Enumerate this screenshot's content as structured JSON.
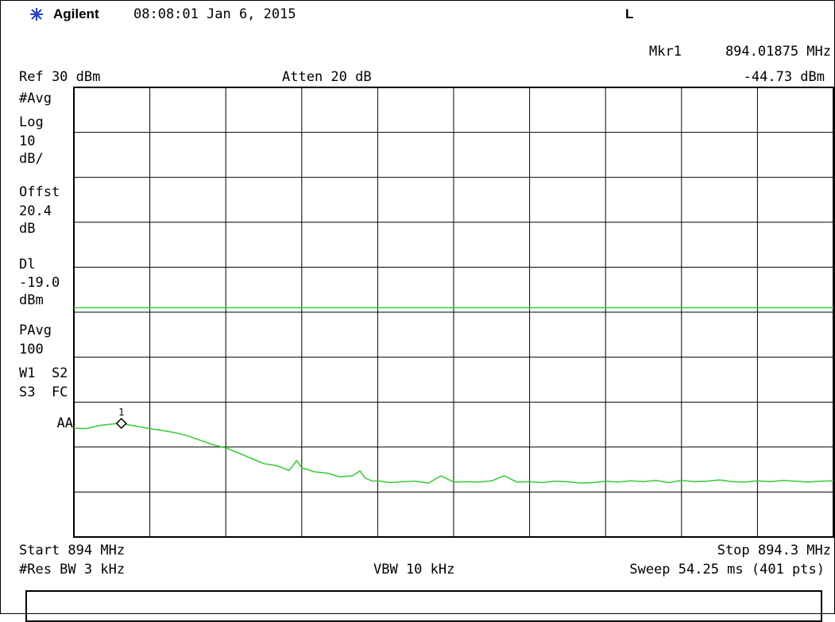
{
  "header": {
    "brand": "Agilent",
    "time": "08:08:01",
    "date": "Jan 6, 2015",
    "mode_flag": "L"
  },
  "marker": {
    "label": "Mkr1",
    "freq": "894.01875 MHz",
    "level": "-44.73 dBm"
  },
  "settings": {
    "ref": "Ref 30 dBm",
    "atten": "Atten 20 dB"
  },
  "sidebar": {
    "avg": "#Avg",
    "scale_type": "Log",
    "scale_value": "10",
    "scale_unit": "dB/",
    "offset_label": "Offst",
    "offset_value": "20.4",
    "offset_unit": "dB",
    "dl_label": "Dl",
    "dl_value": "-19.0",
    "dl_unit": "dBm",
    "pavg_label": "PAvg",
    "pavg_value": "100",
    "row_w1": "W1  S2",
    "row_s3": "S3  FC",
    "row_aa": "AA"
  },
  "footer": {
    "start": "Start 894 MHz",
    "stop": "Stop 894.3 MHz",
    "rbw": "#Res BW 3 kHz",
    "vbw": "VBW 10 kHz",
    "sweep": "Sweep 54.25 ms (401 pts)"
  },
  "colors": {
    "trace": "#33cc33",
    "display_line": "#33cc33",
    "grid": "#000000"
  },
  "chart_data": {
    "type": "line",
    "title": "",
    "xlabel": "",
    "ylabel": "",
    "x_unit": "MHz",
    "y_unit": "dBm",
    "xlim": [
      894.0,
      894.3
    ],
    "ylim": [
      -70,
      30
    ],
    "grid": true,
    "display_line_dbm": -19.0,
    "marker": {
      "name": "1",
      "x": 894.01875,
      "y": -44.73
    },
    "series": [
      {
        "x": [
          894.0,
          894.005,
          894.01,
          894.015,
          894.018,
          894.02,
          894.025,
          894.03,
          894.035,
          894.04,
          894.045,
          894.05,
          894.055,
          894.06,
          894.065,
          894.07,
          894.075,
          894.08,
          894.085,
          894.088,
          894.09,
          894.095,
          894.1,
          894.105,
          894.11,
          894.113,
          894.115,
          894.118,
          894.12,
          894.125,
          894.13,
          894.135,
          894.14,
          894.145,
          894.15,
          894.155,
          894.16,
          894.165,
          894.17,
          894.175,
          894.18,
          894.185,
          894.19,
          894.195,
          894.2,
          894.205,
          894.21,
          894.215,
          894.22,
          894.225,
          894.23,
          894.235,
          894.24,
          894.245,
          894.25,
          894.255,
          894.26,
          894.265,
          894.27,
          894.275,
          894.28,
          894.285,
          894.29,
          894.295,
          894.3
        ],
        "y": [
          -45.8,
          -45.9,
          -45.2,
          -44.9,
          -44.7,
          -44.9,
          -45.4,
          -45.9,
          -46.3,
          -46.8,
          -47.5,
          -48.5,
          -49.5,
          -50.2,
          -51.3,
          -52.5,
          -53.7,
          -54.1,
          -55.2,
          -53.0,
          -54.6,
          -55.5,
          -55.8,
          -56.6,
          -56.4,
          -55.3,
          -56.9,
          -57.6,
          -57.5,
          -57.9,
          -57.7,
          -57.6,
          -58.0,
          -56.4,
          -57.8,
          -57.7,
          -57.8,
          -57.5,
          -56.4,
          -57.8,
          -57.7,
          -57.9,
          -57.6,
          -57.7,
          -58.0,
          -57.9,
          -57.6,
          -57.8,
          -57.5,
          -57.7,
          -57.4,
          -57.9,
          -57.4,
          -57.7,
          -57.6,
          -57.3,
          -57.7,
          -57.8,
          -57.5,
          -57.7,
          -57.4,
          -57.6,
          -57.8,
          -57.6,
          -57.5
        ]
      }
    ]
  }
}
